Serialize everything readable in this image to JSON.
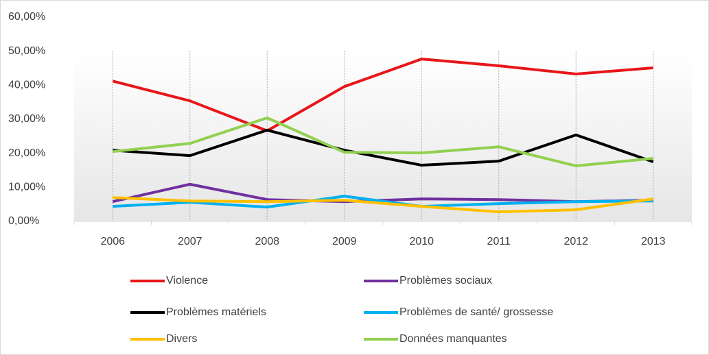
{
  "chart_data": {
    "type": "line",
    "categories": [
      "2006",
      "2007",
      "2008",
      "2009",
      "2010",
      "2011",
      "2012",
      "2013"
    ],
    "series": [
      {
        "name": "Violence",
        "color": "#e8161a",
        "values": [
          41.2,
          35.4,
          26.6,
          39.6,
          47.7,
          45.7,
          43.3,
          45.1
        ]
      },
      {
        "name": "Problèmes sociaux",
        "color": "#7030a0",
        "values": [
          5.8,
          10.9,
          6.4,
          5.8,
          6.6,
          6.4,
          5.8,
          6.2
        ]
      },
      {
        "name": "Problèmes matériels",
        "color": "#000000",
        "values": [
          20.9,
          19.3,
          26.8,
          20.9,
          16.5,
          17.7,
          25.4,
          17.5
        ]
      },
      {
        "name": "Problèmes de santé/ grossesse",
        "color": "#00b0f0",
        "values": [
          4.4,
          5.6,
          4.2,
          7.4,
          4.4,
          5.2,
          5.8,
          6.0
        ]
      },
      {
        "name": "Divers",
        "color": "#ffc000",
        "values": [
          7.0,
          6.0,
          5.8,
          6.2,
          4.4,
          2.8,
          3.4,
          6.6
        ]
      },
      {
        "name": "Données manquantes",
        "color": "#92d050",
        "values": [
          20.5,
          22.9,
          30.4,
          20.3,
          20.1,
          21.9,
          16.3,
          18.5
        ]
      }
    ],
    "ylim": [
      0,
      60
    ],
    "yticks": [
      {
        "value": 0,
        "label": "0,00%"
      },
      {
        "value": 10,
        "label": "10,00%"
      },
      {
        "value": 20,
        "label": "20,00%"
      },
      {
        "value": 30,
        "label": "30,00%"
      },
      {
        "value": 40,
        "label": "40,00%"
      },
      {
        "value": 50,
        "label": "50,00%"
      },
      {
        "value": 60,
        "label": "60,00%"
      }
    ],
    "legend": "bottom"
  }
}
